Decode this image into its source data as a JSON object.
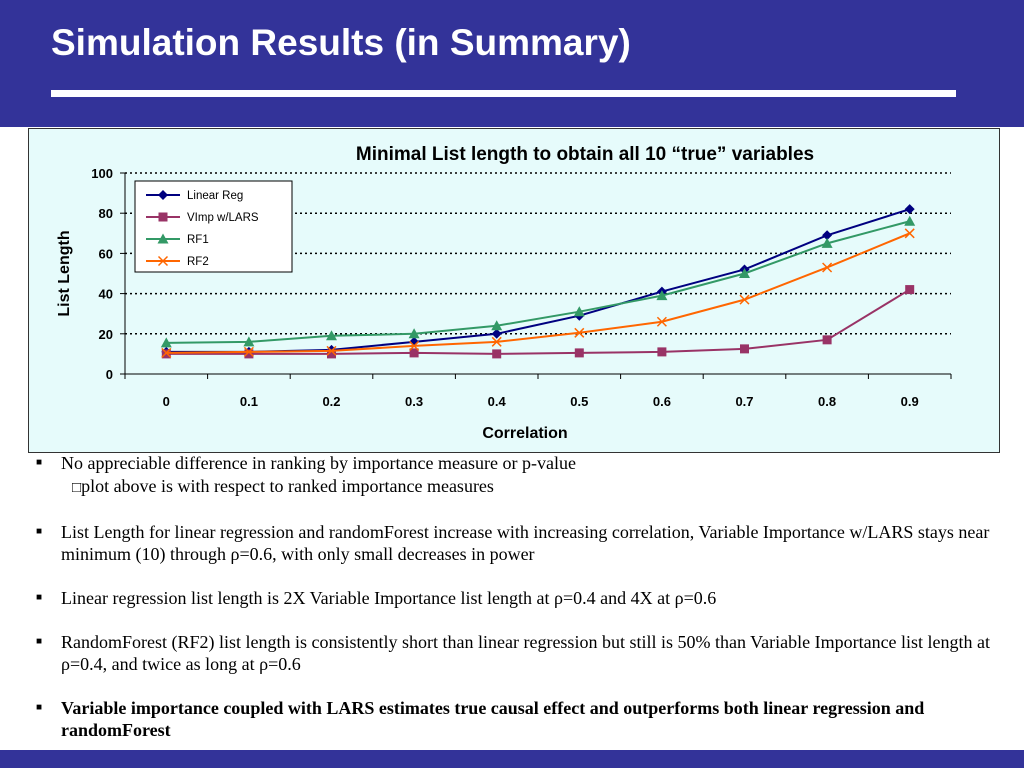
{
  "slide": {
    "title": "Simulation Results (in Summary)"
  },
  "chart_data": {
    "type": "line",
    "title": "Minimal List length to obtain all 10 “true” variables",
    "xlabel": "Correlation",
    "ylabel": "List Length",
    "categories": [
      "0",
      "0.1",
      "0.2",
      "0.3",
      "0.4",
      "0.5",
      "0.6",
      "0.7",
      "0.8",
      "0.9"
    ],
    "ylim": [
      0,
      100
    ],
    "yticks": [
      "0",
      "20",
      "40",
      "60",
      "80",
      "100"
    ],
    "grid": "horizontal dotted",
    "legend_position": "top-left",
    "series": [
      {
        "name": "Linear Reg",
        "color": "#000080",
        "marker": "diamond",
        "values": [
          11,
          11,
          12,
          16,
          20,
          29,
          41,
          52,
          69,
          82
        ]
      },
      {
        "name": "VImp w/LARS",
        "color": "#993366",
        "marker": "square",
        "values": [
          10,
          10,
          10,
          10.5,
          10,
          10.5,
          11,
          12.5,
          17,
          42
        ]
      },
      {
        "name": "RF1",
        "color": "#339966",
        "marker": "triangle",
        "values": [
          15.5,
          16,
          19,
          20,
          24,
          31,
          39,
          50,
          65,
          76
        ]
      },
      {
        "name": "RF2",
        "color": "#ff6600",
        "marker": "x",
        "values": [
          10.5,
          11,
          11.5,
          14,
          16,
          20.5,
          26,
          37,
          53,
          70
        ]
      }
    ]
  },
  "bullets": [
    {
      "marker": "■",
      "text": "No appreciable difference in ranking by importance measure or p-value"
    },
    {
      "marker": "□",
      "text": "plot above is with respect to ranked importance measures"
    },
    {
      "marker": "■",
      "text": "List Length for linear regression and randomForest increase with increasing correlation,  Variable Importance w/LARS stays near minimum (10) through ρ=0.6, with only small decreases in power"
    },
    {
      "marker": "■",
      "text": "Linear regression list length is 2X Variable Importance list length at ρ=0.4 and 4X at ρ=0.6"
    },
    {
      "marker": "■",
      "text": "RandomForest (RF2) list length is consistently short than linear regression but still is 50% than Variable Importance list length at ρ=0.4, and twice as long at ρ=0.6"
    },
    {
      "marker": "■",
      "text": "Variable importance coupled with LARS estimates true causal effect and outperforms both linear regression and randomForest"
    }
  ],
  "colors": {
    "header_background": "#333399",
    "chart_background": "#e6fbfb"
  }
}
